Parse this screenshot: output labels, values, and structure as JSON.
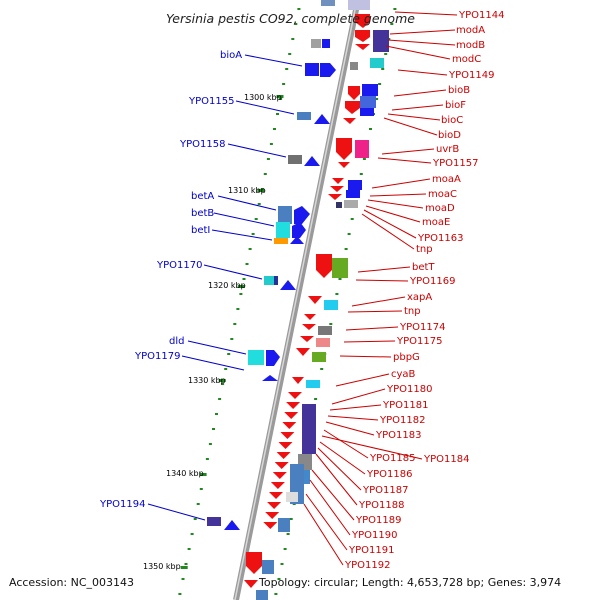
{
  "title": "Yersinia pestis CO92, complete genome",
  "footer": {
    "accession": "Accession: NC_003143",
    "topology": "Topology: circular; Length: 4,653,728 bp; Genes: 3,974"
  },
  "colors": {
    "backbone": "#999999",
    "positive_label": "#0000cc",
    "negative_label": "#cc0000",
    "tick": "#228822"
  },
  "scale_labels": [
    {
      "text": "1300 kbp"
    },
    {
      "text": "1310 kbp"
    },
    {
      "text": "1320 kbp"
    },
    {
      "text": "1330 kbp"
    },
    {
      "text": "1340 kbp"
    },
    {
      "text": "1350 kbp"
    }
  ],
  "positive_strand_labels": [
    {
      "text": "bioA"
    },
    {
      "text": "YPO1155"
    },
    {
      "text": "YPO1158"
    },
    {
      "text": "betA"
    },
    {
      "text": "betB"
    },
    {
      "text": "betI"
    },
    {
      "text": "YPO1170"
    },
    {
      "text": "dld"
    },
    {
      "text": "YPO1179"
    },
    {
      "text": "YPO1194"
    }
  ],
  "negative_strand_labels": [
    {
      "text": "YPO1144"
    },
    {
      "text": "modA"
    },
    {
      "text": "modB"
    },
    {
      "text": "modC"
    },
    {
      "text": "YPO1149"
    },
    {
      "text": "bioB"
    },
    {
      "text": "bioF"
    },
    {
      "text": "bioC"
    },
    {
      "text": "bioD"
    },
    {
      "text": "uvrB"
    },
    {
      "text": "YPO1157"
    },
    {
      "text": "moaA"
    },
    {
      "text": "moaC"
    },
    {
      "text": "moaD"
    },
    {
      "text": "moaE"
    },
    {
      "text": "YPO1163"
    },
    {
      "text": "tnp"
    },
    {
      "text": "betT"
    },
    {
      "text": "YPO1169"
    },
    {
      "text": "xapA"
    },
    {
      "text": "tnp"
    },
    {
      "text": "YPO1174"
    },
    {
      "text": "YPO1175"
    },
    {
      "text": "pbpG"
    },
    {
      "text": "cyaB"
    },
    {
      "text": "YPO1180"
    },
    {
      "text": "YPO1181"
    },
    {
      "text": "YPO1182"
    },
    {
      "text": "YPO1183"
    },
    {
      "text": "YPO1185"
    },
    {
      "text": "YPO1184"
    },
    {
      "text": "YPO1186"
    },
    {
      "text": "YPO1187"
    },
    {
      "text": "YPO1188"
    },
    {
      "text": "YPO1189"
    },
    {
      "text": "YPO1190"
    },
    {
      "text": "YPO1191"
    },
    {
      "text": "YPO1192"
    }
  ]
}
